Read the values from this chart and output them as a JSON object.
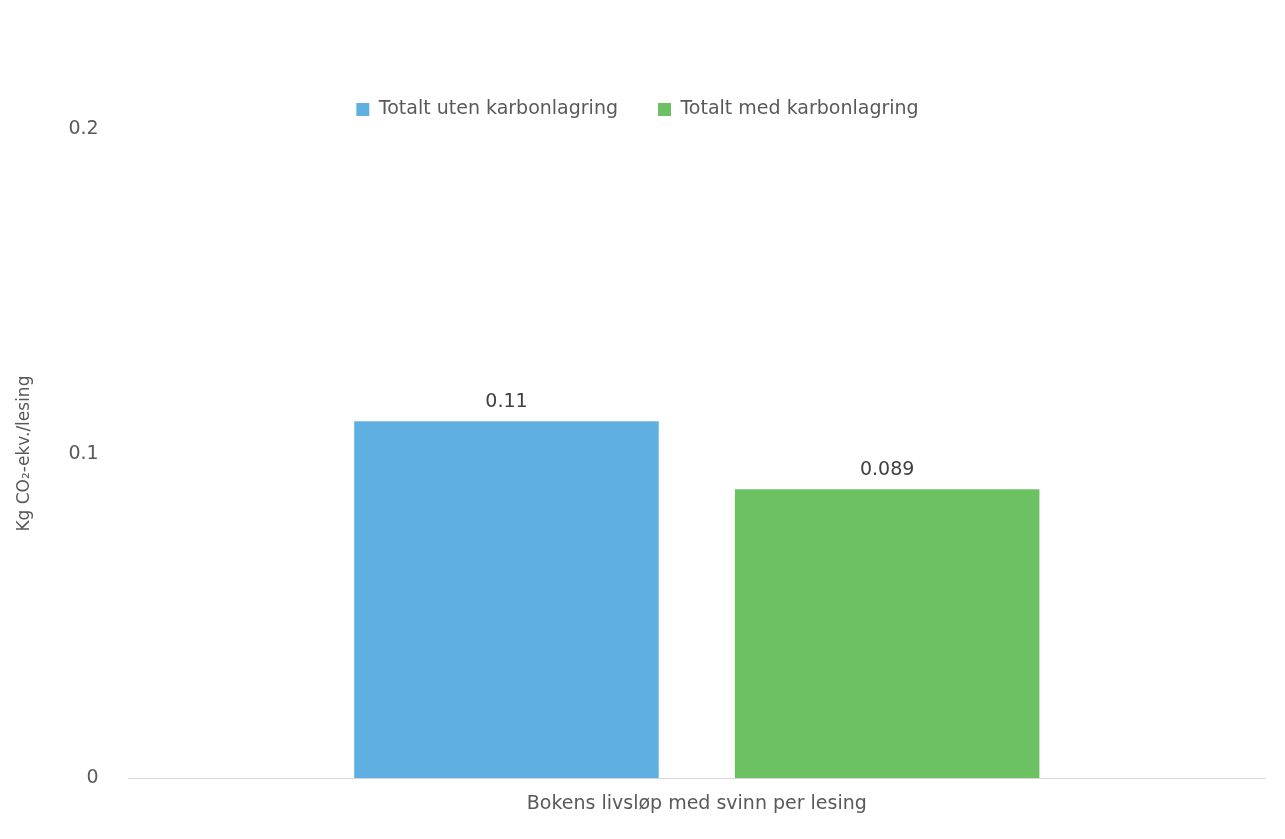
{
  "chart_data": {
    "type": "bar",
    "categories": [
      "Bokens livsløp med svinn per lesing"
    ],
    "ylabel": "Kg CO₂-ekv./lesing",
    "series": [
      {
        "name": "Totalt uten karbonlagring",
        "color": "#5fb0e0",
        "values": [
          0.11
        ]
      },
      {
        "name": "Totalt med karbonlagring",
        "color": "#6cc262",
        "values": [
          0.089
        ]
      }
    ],
    "ylim": [
      0,
      0.2
    ],
    "yticks": [
      0,
      0.1,
      0.2
    ],
    "grid": false,
    "legend": "top",
    "data_labels": true
  }
}
